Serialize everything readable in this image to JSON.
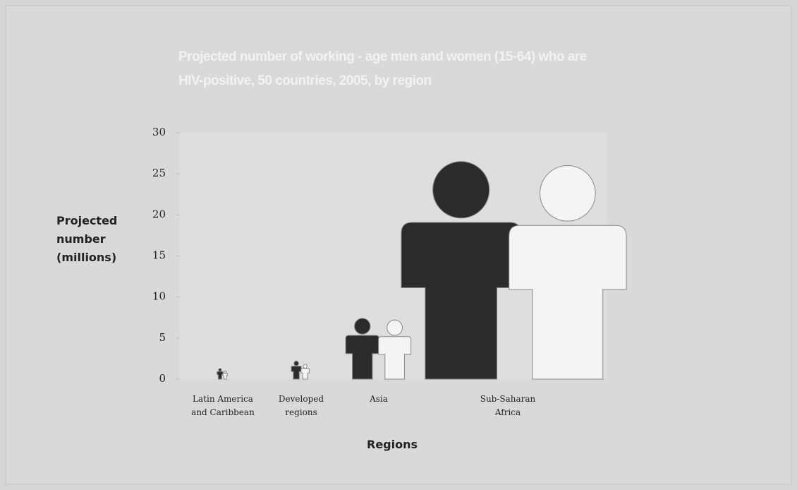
{
  "chart_data": {
    "type": "pictogram",
    "title": "Projected number of working - age men and women (15-64) who are HIV-positive, 50 countries, 2005, by region",
    "y_label": "Projected number (millions)",
    "x_label": "Regions",
    "categories": [
      "Latin America and Caribbean",
      "Developed regions",
      "Asia",
      "Sub-Saharan Africa"
    ],
    "series": [
      {
        "color": "#2b2b2b",
        "values": [
          1.3,
          2.2,
          7.4,
          26.5
        ]
      },
      {
        "color": "#f4f4f4",
        "values": [
          1.0,
          1.8,
          7.2,
          26.0
        ]
      }
    ],
    "ylim": [
      0,
      30
    ],
    "yticks": [
      0,
      5,
      10,
      15,
      20,
      25,
      30
    ]
  }
}
